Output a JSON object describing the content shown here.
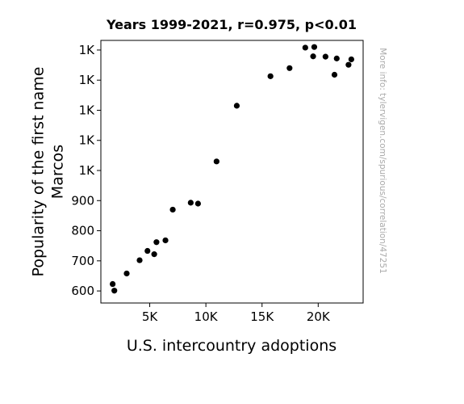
{
  "chart_data": {
    "type": "scatter",
    "title": "Years 1999-2021, r=0.975, p<0.01",
    "xlabel": "U.S. intercountry adoptions",
    "ylabel_lines": [
      "Popularity of the first name",
      "Marcos"
    ],
    "watermark": "More info: tylervigen.com/spurious/correlation/47251",
    "xlim": [
      650,
      24000
    ],
    "ylim": [
      560,
      1432
    ],
    "xticks": [
      {
        "value": 5000,
        "label": "5K"
      },
      {
        "value": 10000,
        "label": "10K"
      },
      {
        "value": 15000,
        "label": "15K"
      },
      {
        "value": 20000,
        "label": "20K"
      }
    ],
    "yticks": [
      {
        "value": 600,
        "label": "600"
      },
      {
        "value": 700,
        "label": "700"
      },
      {
        "value": 800,
        "label": "800"
      },
      {
        "value": 900,
        "label": "900"
      },
      {
        "value": 1000,
        "label": "1K"
      },
      {
        "value": 1100,
        "label": "1K"
      },
      {
        "value": 1200,
        "label": "1K"
      },
      {
        "value": 1300,
        "label": "1K"
      },
      {
        "value": 1400,
        "label": "1K"
      }
    ],
    "marker_color": "#000000",
    "points": [
      {
        "x": 1700,
        "y": 623
      },
      {
        "x": 1850,
        "y": 601
      },
      {
        "x": 2950,
        "y": 658
      },
      {
        "x": 4100,
        "y": 702
      },
      {
        "x": 4800,
        "y": 733
      },
      {
        "x": 5400,
        "y": 722
      },
      {
        "x": 5600,
        "y": 762
      },
      {
        "x": 6400,
        "y": 768
      },
      {
        "x": 7050,
        "y": 870
      },
      {
        "x": 8650,
        "y": 893
      },
      {
        "x": 9300,
        "y": 890
      },
      {
        "x": 10950,
        "y": 1030
      },
      {
        "x": 12750,
        "y": 1215
      },
      {
        "x": 15750,
        "y": 1313
      },
      {
        "x": 17450,
        "y": 1340
      },
      {
        "x": 18850,
        "y": 1408
      },
      {
        "x": 19550,
        "y": 1379
      },
      {
        "x": 19650,
        "y": 1410
      },
      {
        "x": 20650,
        "y": 1378
      },
      {
        "x": 21450,
        "y": 1318
      },
      {
        "x": 21650,
        "y": 1372
      },
      {
        "x": 22700,
        "y": 1351
      },
      {
        "x": 22950,
        "y": 1369
      }
    ]
  }
}
